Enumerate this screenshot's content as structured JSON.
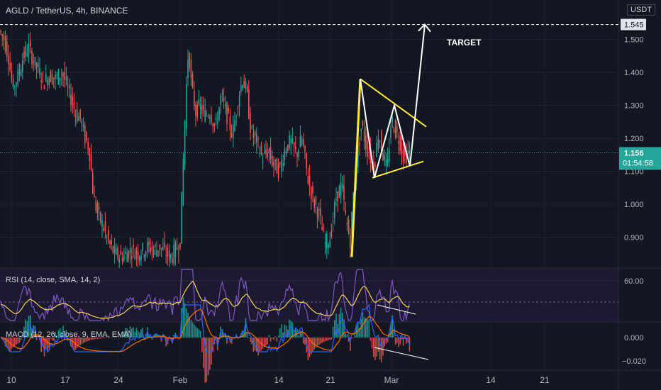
{
  "header": {
    "symbol_title": "AGLD / TetherUS, 4h, BINANCE",
    "unit": "USDT"
  },
  "colors": {
    "background": "#131722",
    "up": "#26a69a",
    "down": "#ef5350",
    "pattern": "#ffeb3b",
    "projection": "#ffffff",
    "rsi_line": "#7e57c2",
    "rsi_ma": "#f7d25c",
    "macd_line": "#2962ff",
    "signal_line": "#ff6d00"
  },
  "chart_data": [
    {
      "type": "candlestick",
      "title": "AGLD / TetherUS, 4h, BINANCE",
      "y_ticks": [
        0.9,
        1.0,
        1.1,
        1.2,
        1.3,
        1.4,
        1.5
      ],
      "y_tick_labels": [
        "0.900",
        "1.000",
        "1.100",
        "1.200",
        "1.300",
        "1.400",
        "1.500"
      ],
      "ylim": [
        0.83,
        1.6
      ],
      "x_tick_labels": [
        "10",
        "17",
        "24",
        "Feb",
        "14",
        "21",
        "Mar",
        "14",
        "21"
      ],
      "target_price": 1.545,
      "target_label": "1.545",
      "last_price": 1.156,
      "last_price_label": "1.156",
      "countdown": "01:54:58",
      "annotation": "TARGET",
      "price_path": [
        [
          0,
          1.53
        ],
        [
          8,
          1.5
        ],
        [
          14,
          1.45
        ],
        [
          20,
          1.35
        ],
        [
          26,
          1.38
        ],
        [
          34,
          1.44
        ],
        [
          42,
          1.48
        ],
        [
          50,
          1.43
        ],
        [
          56,
          1.41
        ],
        [
          64,
          1.37
        ],
        [
          72,
          1.39
        ],
        [
          80,
          1.38
        ],
        [
          90,
          1.4
        ],
        [
          96,
          1.36
        ],
        [
          104,
          1.31
        ],
        [
          110,
          1.27
        ],
        [
          116,
          1.26
        ],
        [
          122,
          1.2
        ],
        [
          128,
          1.17
        ],
        [
          134,
          1.02
        ],
        [
          140,
          0.97
        ],
        [
          148,
          0.93
        ],
        [
          156,
          0.88
        ],
        [
          164,
          0.85
        ],
        [
          172,
          0.84
        ],
        [
          180,
          0.85
        ],
        [
          188,
          0.86
        ],
        [
          196,
          0.85
        ],
        [
          204,
          0.86
        ],
        [
          212,
          0.87
        ],
        [
          220,
          0.86
        ],
        [
          228,
          0.87
        ],
        [
          236,
          0.85
        ],
        [
          244,
          0.84
        ],
        [
          252,
          0.87
        ],
        [
          256,
          0.88
        ],
        [
          260,
          1.1
        ],
        [
          264,
          1.32
        ],
        [
          268,
          1.48
        ],
        [
          272,
          1.36
        ],
        [
          278,
          1.28
        ],
        [
          284,
          1.3
        ],
        [
          290,
          1.27
        ],
        [
          298,
          1.28
        ],
        [
          306,
          1.23
        ],
        [
          314,
          1.33
        ],
        [
          322,
          1.27
        ],
        [
          330,
          1.21
        ],
        [
          338,
          1.32
        ],
        [
          344,
          1.38
        ],
        [
          350,
          1.34
        ],
        [
          356,
          1.22
        ],
        [
          364,
          1.19
        ],
        [
          372,
          1.14
        ],
        [
          380,
          1.16
        ],
        [
          388,
          1.12
        ],
        [
          396,
          1.1
        ],
        [
          404,
          1.17
        ],
        [
          412,
          1.19
        ],
        [
          420,
          1.15
        ],
        [
          428,
          1.2
        ],
        [
          436,
          1.08
        ],
        [
          444,
          1.01
        ],
        [
          452,
          0.97
        ],
        [
          460,
          0.88
        ],
        [
          468,
          0.9
        ],
        [
          476,
          1.02
        ],
        [
          484,
          1.06
        ],
        [
          490,
          0.95
        ],
        [
          496,
          0.89
        ],
        [
          500,
          1.02
        ],
        [
          506,
          1.15
        ],
        [
          512,
          1.24
        ],
        [
          518,
          1.18
        ],
        [
          524,
          1.14
        ],
        [
          530,
          1.12
        ],
        [
          536,
          1.22
        ],
        [
          542,
          1.15
        ],
        [
          548,
          1.1
        ],
        [
          554,
          1.26
        ],
        [
          560,
          1.22
        ],
        [
          566,
          1.19
        ],
        [
          572,
          1.14
        ],
        [
          578,
          1.156
        ]
      ],
      "pattern_flagpole": [
        [
          496,
          0.84
        ],
        [
          508,
          1.38
        ]
      ],
      "pattern_upper_line": [
        [
          508,
          1.38
        ],
        [
          601,
          1.235
        ]
      ],
      "pattern_lower_line": [
        [
          525,
          1.08
        ],
        [
          597,
          1.13
        ]
      ],
      "pattern_zigzag": [
        [
          508,
          1.38
        ],
        [
          528,
          1.08
        ],
        [
          556,
          1.3
        ],
        [
          578,
          1.115
        ]
      ],
      "projection_path": [
        [
          578,
          1.115
        ],
        [
          599,
          1.545
        ]
      ]
    },
    {
      "type": "line",
      "title": "RSI (14, close, SMA, 14, 2)",
      "y_tick_labels": [
        "60.00"
      ],
      "series": [
        {
          "name": "RSI",
          "color": "#7e57c2"
        },
        {
          "name": "SMA",
          "color": "#f7d25c"
        }
      ]
    },
    {
      "type": "bar",
      "title": "MACD (12, 26, close, 9, EMA, EMA)",
      "y_tick_labels": [
        "0.000",
        "−0.020"
      ],
      "series": [
        {
          "name": "MACD",
          "color": "#2962ff"
        },
        {
          "name": "Signal",
          "color": "#ff6d00"
        }
      ]
    }
  ]
}
